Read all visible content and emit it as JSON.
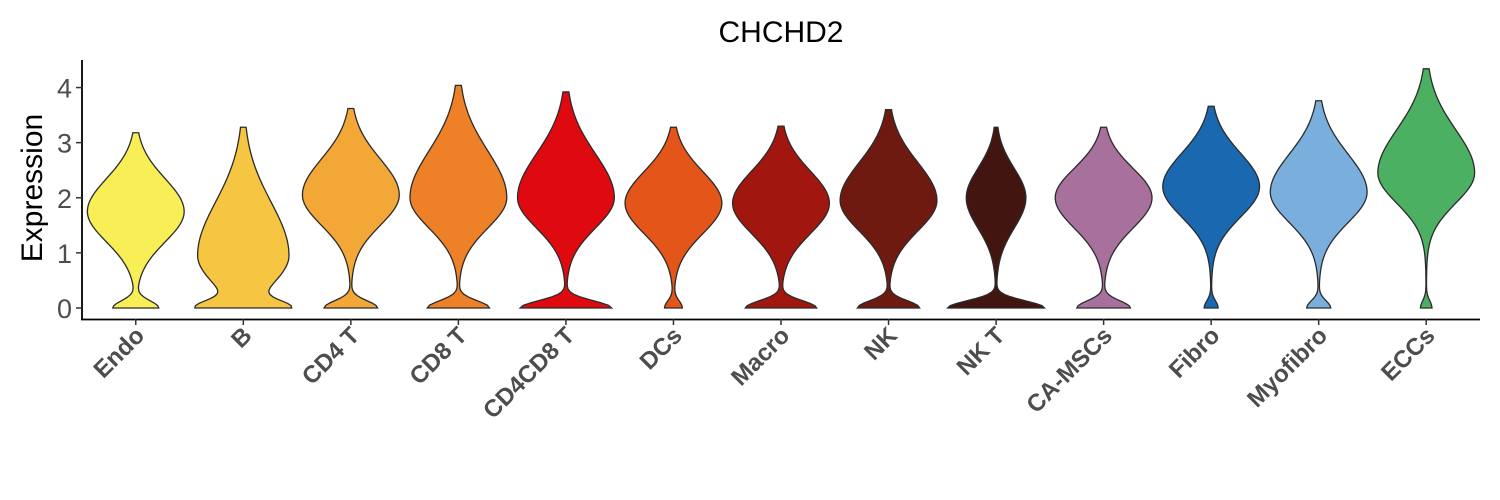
{
  "chart_data": {
    "type": "violin",
    "title": "CHCHD2",
    "xlabel": "",
    "ylabel": "Expression",
    "ylim": [
      -0.2,
      4.5
    ],
    "yticks": [
      0,
      1,
      2,
      3,
      4
    ],
    "grid": false,
    "legend": "none",
    "categories": [
      "Endo",
      "B",
      "CD4 T",
      "CD8 T",
      "CD4CD8 T",
      "DCs",
      "Macro",
      "NK",
      "NK T",
      "CA-MSCs",
      "Fibro",
      "Myofibro",
      "ECCs"
    ],
    "colors": [
      "#F7EF55",
      "#F6C643",
      "#F3A736",
      "#EE8128",
      "#DE0A10",
      "#E35519",
      "#A11710",
      "#6E1A10",
      "#421510",
      "#A8709D",
      "#1A68B0",
      "#7AAEDD",
      "#4CB063"
    ],
    "series": [
      {
        "category": "Endo",
        "min": 0,
        "max": 3.18,
        "peak": 1.75,
        "zero_fraction": 0.35
      },
      {
        "category": "B",
        "min": 0,
        "max": 3.28,
        "peak": 0.95,
        "zero_fraction": 0.55
      },
      {
        "category": "CD4 T",
        "min": 0,
        "max": 3.62,
        "peak": 2.05,
        "zero_fraction": 0.4
      },
      {
        "category": "CD8 T",
        "min": 0,
        "max": 4.04,
        "peak": 2.0,
        "zero_fraction": 0.45
      },
      {
        "category": "CD4CD8 T",
        "min": 0,
        "max": 3.92,
        "peak": 2.0,
        "zero_fraction": 0.6
      },
      {
        "category": "DCs",
        "min": 0,
        "max": 3.28,
        "peak": 1.9,
        "zero_fraction": 0.15
      },
      {
        "category": "Macro",
        "min": 0,
        "max": 3.3,
        "peak": 1.9,
        "zero_fraction": 0.5
      },
      {
        "category": "NK",
        "min": 0,
        "max": 3.6,
        "peak": 1.95,
        "zero_fraction": 0.45
      },
      {
        "category": "NK T",
        "min": 0,
        "max": 3.28,
        "peak": 2.0,
        "zero_fraction": 0.85
      },
      {
        "category": "CA-MSCs",
        "min": 0,
        "max": 3.28,
        "peak": 2.0,
        "zero_fraction": 0.4
      },
      {
        "category": "Fibro",
        "min": 0,
        "max": 3.66,
        "peak": 2.2,
        "zero_fraction": 0.12
      },
      {
        "category": "Myofibro",
        "min": 0,
        "max": 3.76,
        "peak": 2.1,
        "zero_fraction": 0.2
      },
      {
        "category": "ECCs",
        "min": 0,
        "max": 4.34,
        "peak": 2.45,
        "zero_fraction": 0.1
      }
    ]
  }
}
